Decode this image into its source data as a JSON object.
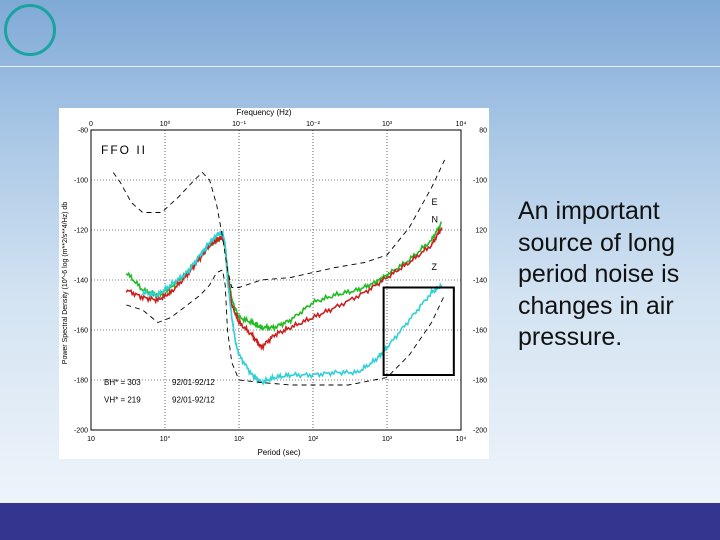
{
  "slide": {
    "text": "An important source of long period noise is changes in air pressure.",
    "colors": {
      "background_top": "#7fa9d6",
      "background_bottom": "#f3f7fc",
      "bottom_bar": "#33358f",
      "circle": "#1aa3a0"
    }
  },
  "chart_data": {
    "type": "line",
    "title": "FFO II",
    "xlabel": "Period (sec)",
    "x2label": "Frequency (Hz)",
    "ylabel": "Power Spectral Density (10^-6 log (m**2/s**4/Hz) db",
    "x_scale": "log",
    "xlim": [
      0.1,
      10000
    ],
    "ylim": [
      -200,
      -80
    ],
    "x_ticks": [
      {
        "value": 0.1,
        "label": "10"
      },
      {
        "value": 1,
        "label": "10°"
      },
      {
        "value": 10,
        "label": "10¹"
      },
      {
        "value": 100,
        "label": "10²"
      },
      {
        "value": 1000,
        "label": "10³"
      },
      {
        "value": 10000,
        "label": "10⁴"
      }
    ],
    "x2_ticks": [
      {
        "value": 0.1,
        "label": "0"
      },
      {
        "value": 1,
        "label": "10⁰"
      },
      {
        "value": 10,
        "label": "10⁻¹"
      },
      {
        "value": 100,
        "label": "10⁻²"
      },
      {
        "value": 1000,
        "label": "10³"
      },
      {
        "value": 10000,
        "label": "10⁴"
      }
    ],
    "y_ticks_left": [
      {
        "value": -80,
        "label": "-80"
      },
      {
        "value": -100,
        "label": "-100"
      },
      {
        "value": -120,
        "label": "-120"
      },
      {
        "value": -140,
        "label": "-140"
      },
      {
        "value": -160,
        "label": "-160"
      },
      {
        "value": -180,
        "label": "-180"
      },
      {
        "value": -200,
        "label": "-200"
      }
    ],
    "y_ticks_right": [
      {
        "value": -80,
        "label": "80"
      },
      {
        "value": -100,
        "label": "-100"
      },
      {
        "value": -120,
        "label": "120"
      },
      {
        "value": -140,
        "label": "-140"
      },
      {
        "value": -160,
        "label": "-160"
      },
      {
        "value": -180,
        "label": "-180"
      },
      {
        "value": -200,
        "label": "-200"
      }
    ],
    "grid": true,
    "annotations": [
      {
        "text": "E",
        "x": 4000,
        "y": -110
      },
      {
        "text": "N",
        "x": 4000,
        "y": -117
      },
      {
        "text": "Z",
        "x": 4000,
        "y": -136
      }
    ],
    "notes": [
      {
        "label": "BH* = 303",
        "date": "92/01-92/12",
        "x": 0.15,
        "y": -182
      },
      {
        "label": "VH* = 219",
        "date": "92/01-92/12",
        "x": 0.15,
        "y": -189
      }
    ],
    "highlight_box": {
      "x": [
        900,
        8000
      ],
      "y": [
        -143,
        -178
      ]
    },
    "series": [
      {
        "color": "#22bb22",
        "style": "noisy",
        "points": [
          [
            0.3,
            -137
          ],
          [
            0.5,
            -144
          ],
          [
            0.8,
            -146
          ],
          [
            1.2,
            -143
          ],
          [
            2,
            -137
          ],
          [
            3,
            -131
          ],
          [
            4,
            -126
          ],
          [
            5,
            -124
          ],
          [
            6,
            -123
          ],
          [
            6.5,
            -126
          ],
          [
            7,
            -136
          ],
          [
            8,
            -148
          ],
          [
            10,
            -155
          ],
          [
            15,
            -157
          ],
          [
            20,
            -159
          ],
          [
            30,
            -159
          ],
          [
            50,
            -156
          ],
          [
            100,
            -149
          ],
          [
            200,
            -146
          ],
          [
            400,
            -144
          ],
          [
            700,
            -141
          ],
          [
            1000,
            -138
          ],
          [
            2000,
            -132
          ],
          [
            4000,
            -124
          ],
          [
            5500,
            -117
          ]
        ]
      },
      {
        "color": "#cc2020",
        "style": "noisy",
        "points": [
          [
            0.3,
            -144
          ],
          [
            0.5,
            -147
          ],
          [
            0.8,
            -148
          ],
          [
            1.2,
            -145
          ],
          [
            2,
            -138
          ],
          [
            3,
            -131
          ],
          [
            4,
            -126
          ],
          [
            5,
            -124
          ],
          [
            6,
            -123
          ],
          [
            6.5,
            -127
          ],
          [
            7,
            -138
          ],
          [
            8,
            -150
          ],
          [
            10,
            -157
          ],
          [
            15,
            -162
          ],
          [
            20,
            -167
          ],
          [
            30,
            -162
          ],
          [
            50,
            -159
          ],
          [
            100,
            -155
          ],
          [
            200,
            -151
          ],
          [
            500,
            -145
          ],
          [
            1000,
            -139
          ],
          [
            2000,
            -133
          ],
          [
            4000,
            -126
          ],
          [
            5500,
            -119
          ]
        ]
      },
      {
        "color": "#30d0d8",
        "style": "noisy",
        "points": [
          [
            0.5,
            -145
          ],
          [
            0.8,
            -146
          ],
          [
            1.2,
            -142
          ],
          [
            2,
            -137
          ],
          [
            3,
            -130
          ],
          [
            4,
            -125
          ],
          [
            5,
            -122
          ],
          [
            6,
            -121
          ],
          [
            6.5,
            -126
          ],
          [
            7,
            -140
          ],
          [
            8,
            -155
          ],
          [
            9,
            -165
          ],
          [
            10,
            -170
          ],
          [
            15,
            -178
          ],
          [
            20,
            -181
          ],
          [
            30,
            -179
          ],
          [
            50,
            -178
          ],
          [
            100,
            -178
          ],
          [
            200,
            -177
          ],
          [
            400,
            -177
          ],
          [
            700,
            -172
          ],
          [
            1000,
            -167
          ],
          [
            2000,
            -156
          ],
          [
            4000,
            -145
          ],
          [
            5500,
            -142
          ]
        ]
      },
      {
        "color": "#000000",
        "style": "dashed",
        "points": [
          [
            0.2,
            -97
          ],
          [
            0.25,
            -101
          ],
          [
            0.35,
            -109
          ],
          [
            0.5,
            -113
          ],
          [
            0.9,
            -113
          ],
          [
            1.5,
            -107
          ],
          [
            2.5,
            -100
          ],
          [
            3.2,
            -97
          ],
          [
            4,
            -100
          ],
          [
            5,
            -110
          ],
          [
            6,
            -123
          ],
          [
            7,
            -136
          ],
          [
            8,
            -143
          ],
          [
            10,
            -143
          ],
          [
            20,
            -140
          ],
          [
            50,
            -139
          ],
          [
            100,
            -137
          ],
          [
            200,
            -135
          ],
          [
            500,
            -133
          ],
          [
            1000,
            -130
          ],
          [
            2000,
            -119
          ],
          [
            4000,
            -103
          ],
          [
            6000,
            -92
          ]
        ]
      },
      {
        "color": "#000000",
        "style": "dashed",
        "points": [
          [
            0.3,
            -150
          ],
          [
            0.5,
            -152
          ],
          [
            0.8,
            -157
          ],
          [
            1.2,
            -155
          ],
          [
            2,
            -150
          ],
          [
            3,
            -146
          ],
          [
            4,
            -142
          ],
          [
            5,
            -137
          ],
          [
            6,
            -136
          ],
          [
            6.5,
            -142
          ],
          [
            7,
            -160
          ],
          [
            8,
            -173
          ],
          [
            10,
            -180
          ],
          [
            20,
            -181
          ],
          [
            50,
            -182
          ],
          [
            100,
            -182
          ],
          [
            300,
            -182
          ],
          [
            1000,
            -179
          ],
          [
            2000,
            -170
          ],
          [
            4000,
            -157
          ],
          [
            6000,
            -146
          ]
        ]
      }
    ]
  }
}
